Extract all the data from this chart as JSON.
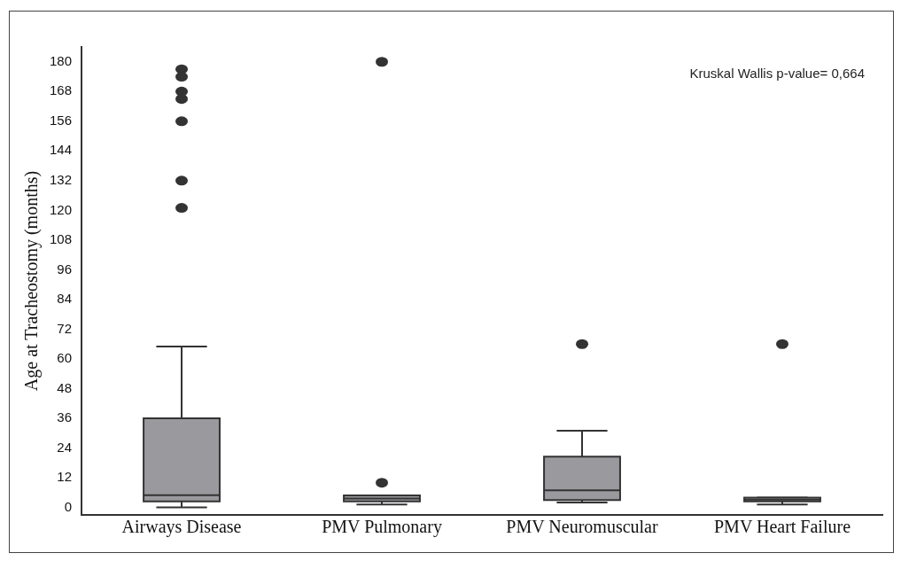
{
  "chart_data": {
    "type": "box",
    "ylabel": "Age at Tracheostomy (months)",
    "categories": [
      "Airways Disease",
      "PMV Pulmonary",
      "PMV Neuromuscular",
      "PMV Heart Failure"
    ],
    "color": "#9a9a9e",
    "boxes": [
      {
        "low": 0,
        "q1": 2.5,
        "median": 5,
        "q3": 36,
        "high": 65,
        "outliers": [
          121,
          132,
          156,
          165,
          168,
          174,
          177
        ]
      },
      {
        "low": 1.2,
        "q1": 2.5,
        "median": 3.6,
        "q3": 4.9,
        "high": 4.9,
        "outliers": [
          10,
          180
        ]
      },
      {
        "low": 2,
        "q1": 3,
        "median": 6.9,
        "q3": 20.5,
        "high": 31,
        "outliers": [
          66
        ]
      },
      {
        "low": 1.2,
        "q1": 2.5,
        "median": 3.2,
        "q3": 4,
        "high": 4,
        "outliers": [
          66
        ]
      }
    ],
    "ylim": [
      -3,
      186
    ],
    "yticks": [
      0,
      12,
      24,
      36,
      48,
      60,
      72,
      84,
      96,
      108,
      120,
      132,
      144,
      156,
      168,
      180
    ],
    "grid": false,
    "annotations": [
      "Kruskal Wallis p-value= 0,664"
    ]
  }
}
